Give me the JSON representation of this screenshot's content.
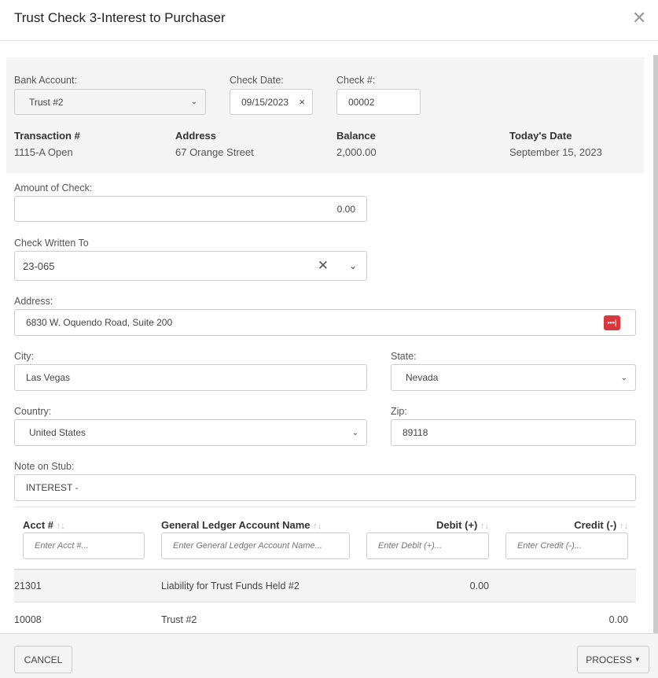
{
  "title": "Trust Check 3-Interest to Purchaser",
  "bank_account": {
    "label": "Bank Account:",
    "value": "Trust #2"
  },
  "check_date": {
    "label": "Check Date:",
    "value": "09/15/2023",
    "clear": "×"
  },
  "check_number": {
    "label": "Check #:",
    "value": "00002"
  },
  "info": [
    {
      "label": "Transaction #",
      "value": "1115-A Open"
    },
    {
      "label": "Address",
      "value": "67 Orange Street"
    },
    {
      "label": "Balance",
      "value": "2,000.00"
    },
    {
      "label": "Today's Date",
      "value": "September 15, 2023"
    }
  ],
  "amount": {
    "label": "Amount of Check:",
    "value": "0.00"
  },
  "written_to": {
    "label": "Check Written To",
    "value": "23-065"
  },
  "address": {
    "label": "Address:",
    "value": "6830 W. Oquendo Road, Suite 200"
  },
  "city": {
    "label": "City:",
    "value": "Las Vegas"
  },
  "state": {
    "label": "State:",
    "value": "Nevada"
  },
  "country": {
    "label": "Country:",
    "value": "United States"
  },
  "zip": {
    "label": "Zip:",
    "value": "89118"
  },
  "note": {
    "label": "Note on Stub:",
    "value": "INTEREST -"
  },
  "table": {
    "columns": [
      {
        "label": "Acct #",
        "placeholder": "Enter Acct #..."
      },
      {
        "label": "General Ledger Account Name",
        "placeholder": "Enter General Ledger Account Name..."
      },
      {
        "label": "Debit (+)",
        "placeholder": "Enter Debit (+)..."
      },
      {
        "label": "Credit (-)",
        "placeholder": "Enter Credit (-)..."
      }
    ],
    "rows": [
      {
        "acct": "21301",
        "name": "Liability for Trust Funds Held #2",
        "debit": "0.00",
        "credit": ""
      },
      {
        "acct": "10008",
        "name": "Trust #2",
        "debit": "",
        "credit": "0.00"
      }
    ]
  },
  "footer": {
    "cancel": "CANCEL",
    "process": "PROCESS"
  },
  "colors": {
    "icon_red": "#d9363e"
  }
}
